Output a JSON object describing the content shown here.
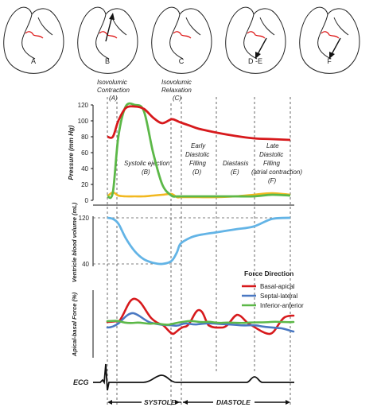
{
  "colors": {
    "red": "#d7191c",
    "green": "#5cb848",
    "yellow": "#f2b820",
    "blue": "#4a78c2",
    "lightblue": "#63b4e6",
    "black": "#111111"
  },
  "hearts": [
    {
      "label": "A",
      "arrow": "none"
    },
    {
      "label": "B",
      "arrow": "up"
    },
    {
      "label": "C",
      "arrow": "none"
    },
    {
      "label": "D -E",
      "arrow": "down"
    },
    {
      "label": "F",
      "arrow": "down"
    }
  ],
  "phases": {
    "iso_contraction": [
      "Isovolumic",
      "Contraction",
      "(A)"
    ],
    "iso_relaxation": [
      "Isovolumic",
      "Relaxation",
      "(C)"
    ],
    "systolic_ejection": [
      "Systolic ejection",
      "(B)"
    ],
    "early_filling": [
      "Early",
      "Diastolic",
      "Filling",
      "(D)"
    ],
    "diastasis": [
      "Diastasis",
      "(E)"
    ],
    "late_filling": [
      "Late",
      "Diastolic",
      "Filling",
      "(atrial contraction)",
      "(F)"
    ]
  },
  "pressure_axis": {
    "label": "Pressure (mm Hg)",
    "ticks": [
      "120",
      "100",
      "80",
      "60",
      "40",
      "20",
      "0"
    ]
  },
  "volume_axis": {
    "label": "Ventricle blood volume (mL)",
    "ticks": [
      "120",
      "40"
    ]
  },
  "force_axis": {
    "label": "Apical-basal Force (%)"
  },
  "legend": {
    "title": "Force Direction",
    "items": [
      {
        "label": "Basal-apical",
        "color": "#d7191c"
      },
      {
        "label": "Septal-lateral",
        "color": "#4a78c2"
      },
      {
        "label": "Inferior-anterior",
        "color": "#5cb848"
      }
    ]
  },
  "ecg_label": "ECG",
  "bottom": {
    "systole": "SYSTOLE",
    "diastole": "DIASTOLE"
  },
  "curves": {
    "t": [
      0,
      0.03,
      0.06,
      0.1,
      0.15,
      0.2,
      0.25,
      0.3,
      0.35,
      0.38,
      0.4,
      0.45,
      0.5,
      0.6,
      0.7,
      0.8,
      0.9,
      1.0
    ],
    "pressure_red": [
      80,
      80,
      100,
      116,
      118,
      115,
      104,
      97,
      102,
      100,
      98,
      94,
      90,
      85,
      81,
      78,
      77,
      76
    ],
    "pressure_green": [
      5,
      10,
      80,
      118,
      120,
      112,
      60,
      20,
      6,
      5,
      5,
      5,
      5,
      5,
      5,
      5,
      7,
      6
    ],
    "pressure_yellow": [
      5,
      10,
      6,
      5,
      5,
      5,
      6,
      7,
      8,
      4,
      4,
      4,
      4,
      4,
      5,
      7,
      9,
      7
    ],
    "volume_blue": [
      120,
      118,
      110,
      85,
      62,
      48,
      42,
      40,
      45,
      60,
      75,
      85,
      90,
      95,
      100,
      105,
      118,
      120
    ]
  }
}
